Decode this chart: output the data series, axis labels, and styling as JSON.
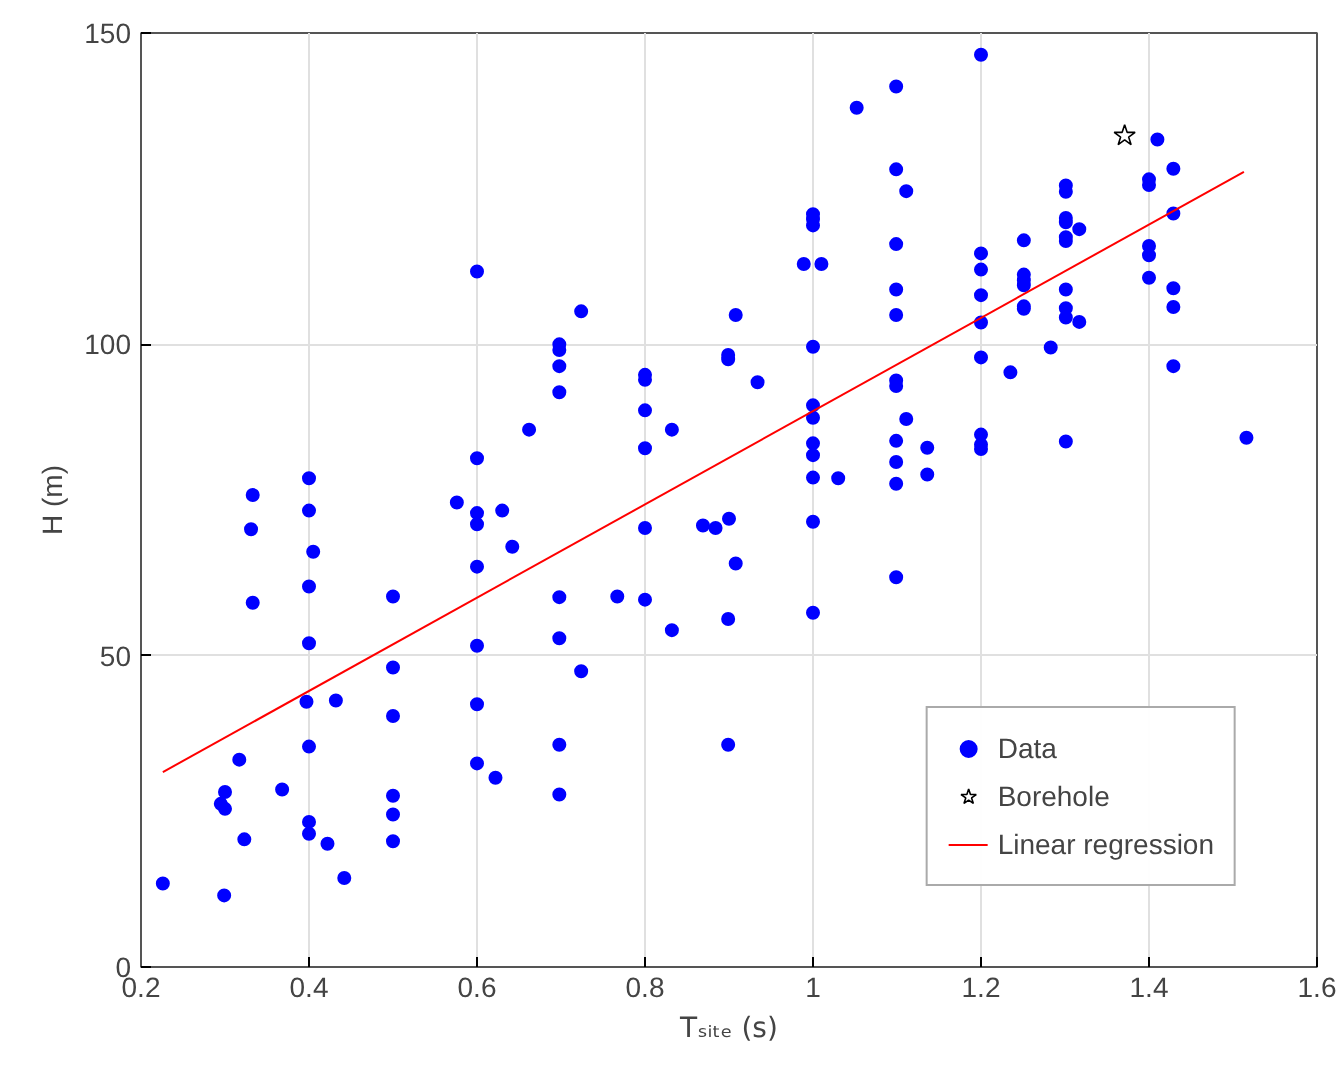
{
  "chart_data": {
    "type": "scatter",
    "xlabel": "Tₛᵢₜₑ (s)",
    "ylabel": "H (m)",
    "xlim": [
      0.2,
      1.6
    ],
    "ylim": [
      0,
      150
    ],
    "xticks": [
      0.2,
      0.4,
      0.6,
      0.8,
      1,
      1.2,
      1.4,
      1.6
    ],
    "yticks": [
      0,
      50,
      100,
      150
    ],
    "grid": true,
    "legend": "bottom right",
    "series": [
      {
        "name": "Data",
        "color": "#0000ff",
        "marker": "circle",
        "x": [
          0.226,
          0.299,
          0.295,
          0.3,
          0.3,
          0.323,
          0.317,
          0.333,
          0.331,
          0.333,
          0.368,
          0.4,
          0.4,
          0.405,
          0.4,
          0.4,
          0.397,
          0.4,
          0.4,
          0.4,
          0.422,
          0.432,
          0.442,
          0.5,
          0.5,
          0.5,
          0.5,
          0.5,
          0.5,
          0.576,
          0.6,
          0.6,
          0.6,
          0.6,
          0.63,
          0.6,
          0.642,
          0.6,
          0.6,
          0.6,
          0.622,
          0.662,
          0.724,
          0.698,
          0.698,
          0.698,
          0.698,
          0.698,
          0.698,
          0.724,
          0.698,
          0.698,
          0.767,
          0.8,
          0.8,
          0.8,
          0.8,
          0.832,
          0.8,
          0.8,
          0.832,
          0.869,
          0.884,
          0.9,
          0.908,
          0.899,
          0.899,
          0.934,
          0.908,
          0.899,
          0.899,
          1.0,
          1.0,
          1.0,
          0.989,
          1.01,
          1.0,
          1.0,
          1.0,
          1.0,
          1.0,
          1.0,
          1.03,
          1.0,
          1.0,
          1.052,
          1.099,
          1.099,
          1.111,
          1.099,
          1.099,
          1.099,
          1.099,
          1.099,
          1.111,
          1.099,
          1.099,
          1.099,
          1.136,
          1.136,
          1.099,
          1.2,
          1.2,
          1.2,
          1.2,
          1.2,
          1.2,
          1.235,
          1.2,
          1.2,
          1.2,
          1.251,
          1.251,
          1.251,
          1.251,
          1.251,
          1.251,
          1.283,
          1.301,
          1.301,
          1.301,
          1.301,
          1.301,
          1.301,
          1.317,
          1.301,
          1.301,
          1.301,
          1.317,
          1.301,
          1.41,
          1.4,
          1.4,
          1.429,
          1.429,
          1.4,
          1.4,
          1.4,
          1.429,
          1.429,
          1.429,
          1.516
        ],
        "values": [
          13.4,
          11.5,
          26.2,
          25.4,
          28.1,
          20.5,
          33.3,
          75.8,
          70.3,
          58.5,
          28.5,
          78.5,
          73.3,
          66.7,
          61.1,
          52.0,
          42.6,
          35.4,
          23.3,
          21.4,
          19.8,
          42.8,
          14.3,
          59.5,
          48.1,
          40.3,
          27.5,
          24.5,
          20.2,
          74.6,
          111.7,
          81.7,
          72.9,
          71.1,
          73.3,
          64.3,
          67.5,
          51.6,
          42.2,
          32.7,
          30.4,
          86.3,
          105.3,
          100.0,
          99.1,
          96.5,
          92.3,
          59.4,
          52.8,
          47.5,
          35.7,
          27.7,
          59.5,
          95.1,
          94.3,
          89.4,
          83.3,
          86.3,
          70.5,
          59.0,
          54.1,
          70.9,
          70.5,
          72.0,
          104.7,
          98.3,
          97.6,
          93.9,
          64.8,
          55.9,
          35.7,
          120.9,
          120.1,
          119.1,
          112.9,
          112.9,
          99.6,
          90.2,
          88.2,
          84.1,
          82.2,
          78.6,
          78.5,
          71.5,
          56.9,
          138.0,
          141.4,
          128.1,
          124.6,
          116.1,
          108.8,
          104.7,
          94.2,
          93.3,
          88.0,
          84.5,
          81.1,
          77.6,
          83.4,
          79.1,
          62.6,
          146.5,
          114.6,
          112.0,
          107.9,
          103.5,
          97.9,
          95.5,
          85.5,
          83.9,
          83.2,
          116.7,
          111.2,
          110.3,
          109.5,
          106.1,
          105.7,
          99.5,
          125.5,
          124.5,
          120.3,
          119.6,
          117.2,
          116.6,
          118.5,
          108.8,
          105.8,
          104.3,
          103.6,
          84.4,
          132.9,
          126.5,
          125.6,
          128.2,
          121.0,
          115.8,
          114.3,
          110.7,
          109.0,
          106.0,
          96.5,
          85.0
        ]
      },
      {
        "name": "Borehole",
        "color": "#000000",
        "marker": "star",
        "x": [
          1.371
        ],
        "values": [
          133.5
        ]
      },
      {
        "name": "Linear regression",
        "type": "line",
        "color": "#ff0000",
        "line_style": "solid",
        "x": [
          0.226,
          1.513
        ],
        "values": [
          31.3,
          127.7
        ]
      }
    ]
  }
}
